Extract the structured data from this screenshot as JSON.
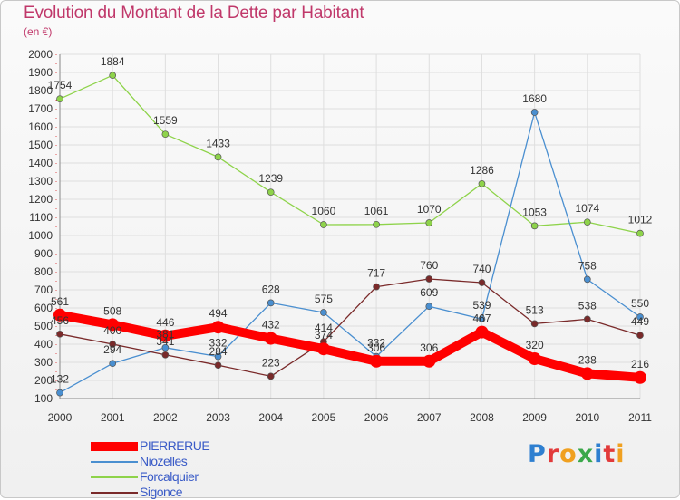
{
  "header": {
    "title": "Evolution du Montant de la Dette par Habitant",
    "subtitle": "(en €)"
  },
  "brand": {
    "text": "Proxiti",
    "letter_colors": [
      "#2e7fd0",
      "#e23a3a",
      "#f0a020",
      "#3aa84a",
      "#2e7fd0",
      "#e23a3a",
      "#f0a020"
    ]
  },
  "chart_data": {
    "type": "line",
    "title": "Evolution du Montant de la Dette par Habitant",
    "subtitle": "(en €)",
    "categories": [
      "2000",
      "2001",
      "2002",
      "2003",
      "2004",
      "2005",
      "2006",
      "2007",
      "2008",
      "2009",
      "2010",
      "2011"
    ],
    "ylim": [
      100,
      2000
    ],
    "yticks": [
      100,
      200,
      300,
      400,
      500,
      600,
      700,
      800,
      900,
      1000,
      1100,
      1200,
      1300,
      1400,
      1500,
      1600,
      1700,
      1800,
      1900,
      2000
    ],
    "grid": true,
    "legend": "bottom-left",
    "series": [
      {
        "name": "PIERRERUE",
        "color": "#ff0000",
        "values": [
          561,
          508,
          446,
          494,
          432,
          374,
          306,
          306,
          467,
          320,
          238,
          216
        ],
        "labels": [
          "561",
          "508",
          "446",
          "494",
          "432",
          "374",
          "306",
          "306",
          "467",
          "320",
          "238",
          "216"
        ]
      },
      {
        "name": "Niozelles",
        "color": "#4a8fd0",
        "values": [
          132,
          294,
          381,
          332,
          628,
          575,
          332,
          609,
          539,
          1680,
          758,
          550
        ],
        "labels": [
          "132",
          "294",
          "381",
          "332",
          "628",
          "575",
          "332",
          "609",
          "539",
          "1680",
          "758",
          "550"
        ]
      },
      {
        "name": "Forcalquier",
        "color": "#8ed34a",
        "values": [
          1754,
          1884,
          1559,
          1433,
          1239,
          1060,
          1061,
          1070,
          1286,
          1053,
          1074,
          1012
        ],
        "labels": [
          "1754",
          "1884",
          "1559",
          "1433",
          "1239",
          "1060",
          "1061",
          "1070",
          "1286",
          "1053",
          "1074",
          "1012"
        ]
      },
      {
        "name": "Sigonce",
        "color": "#7a2a2a",
        "values": [
          456,
          400,
          341,
          284,
          223,
          414,
          717,
          760,
          740,
          513,
          538,
          449
        ],
        "labels": [
          "456",
          "400",
          "341",
          "284",
          "223",
          "414",
          "717",
          "760",
          "740",
          "513",
          "538",
          "449"
        ]
      }
    ]
  }
}
